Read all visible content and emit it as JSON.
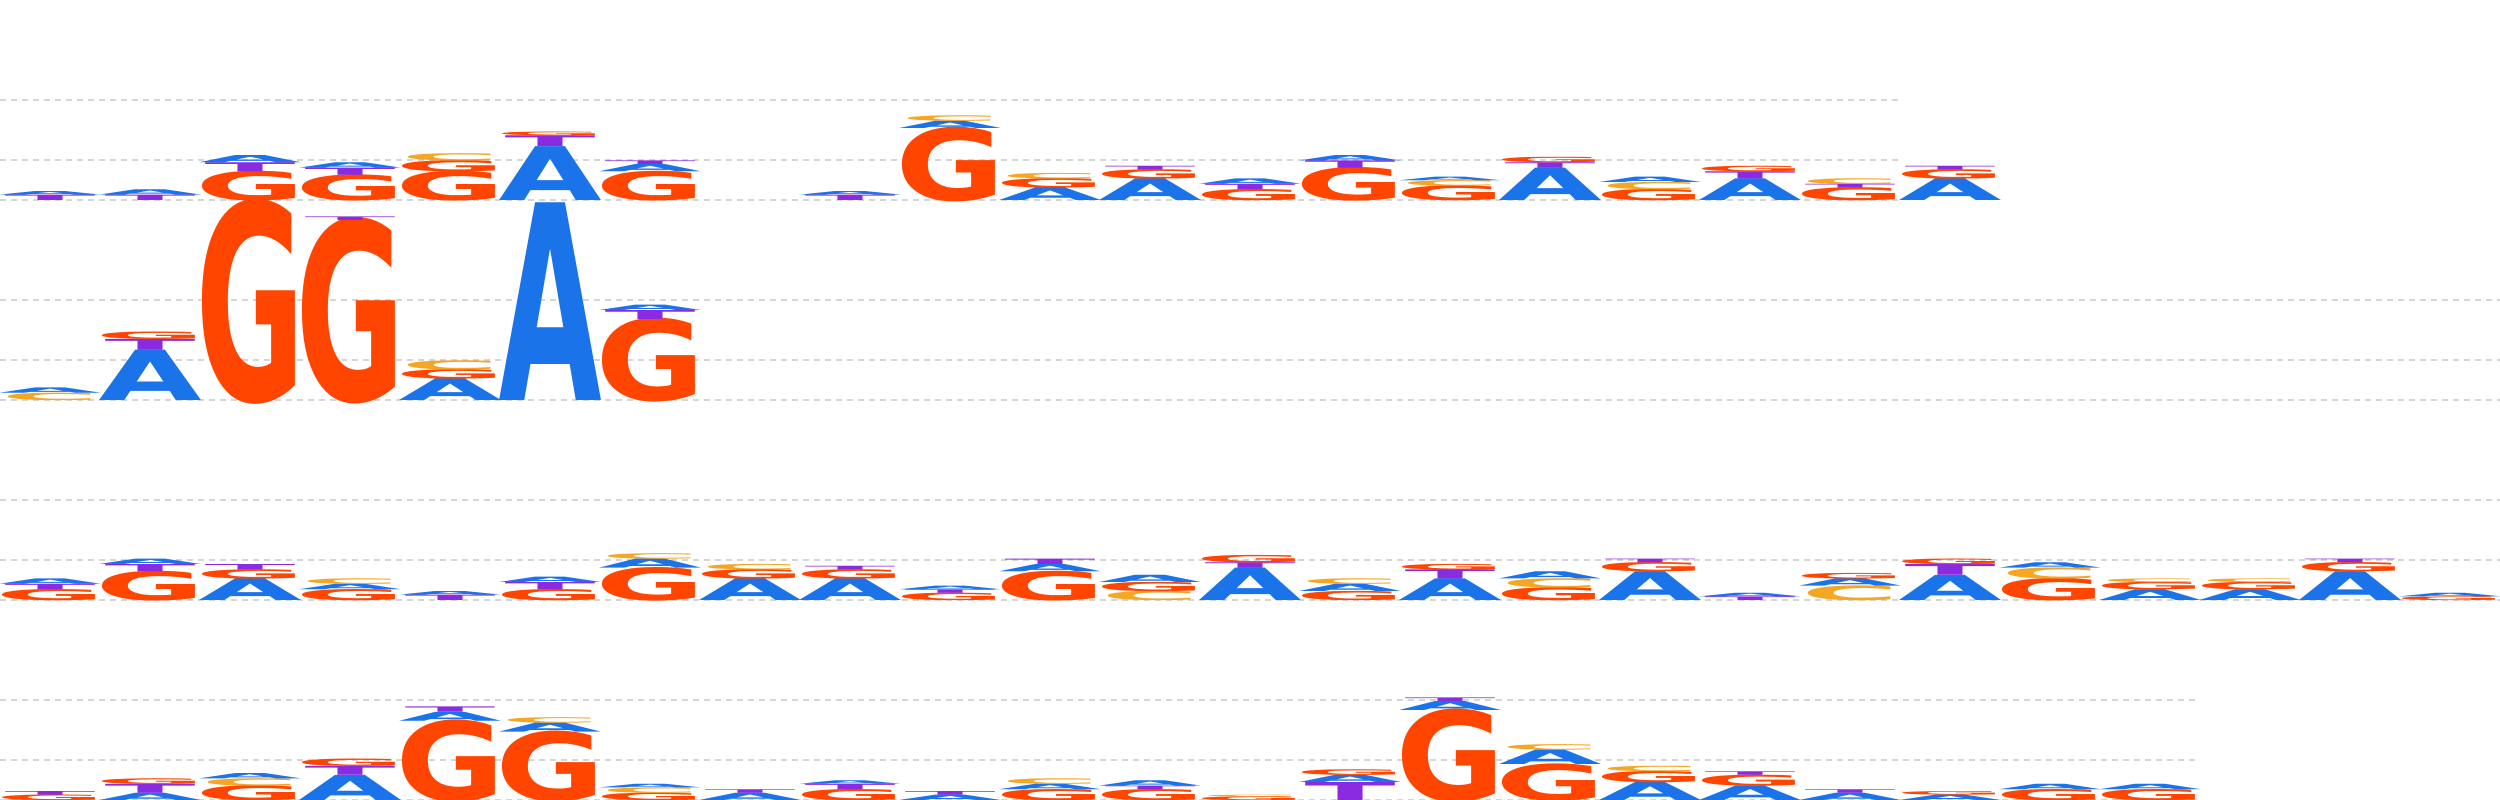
{
  "colors": {
    "A": "#1a73e8",
    "C": "#f5a623",
    "G": "#ff4500",
    "T": "#8a2be2",
    "gridline": "#c8c8c8"
  },
  "logos": [
    {
      "columns": [
        [
          [
            "T",
            0.03
          ],
          [
            "A",
            0.02
          ]
        ],
        [
          [
            "T",
            0.03
          ],
          [
            "A",
            0.03
          ]
        ],
        [
          [
            "G",
            0.16
          ],
          [
            "T",
            0.05
          ],
          [
            "A",
            0.04
          ]
        ],
        [
          [
            "G",
            0.14
          ],
          [
            "T",
            0.04
          ],
          [
            "A",
            0.03
          ]
        ],
        [
          [
            "G",
            0.16
          ],
          [
            "G",
            0.06
          ],
          [
            "C",
            0.04
          ]
        ],
        [
          [
            "A",
            0.3
          ],
          [
            "T",
            0.06
          ],
          [
            "G",
            0.02
          ]
        ],
        [
          [
            "G",
            0.16
          ],
          [
            "A",
            0.04
          ],
          [
            "T",
            0.02
          ]
        ],
        [],
        [
          [
            "T",
            0.03
          ],
          [
            "A",
            0.02
          ]
        ],
        [
          [
            "G",
            0.4
          ],
          [
            "A",
            0.04
          ],
          [
            "C",
            0.03
          ]
        ],
        [
          [
            "A",
            0.07
          ],
          [
            "G",
            0.05
          ],
          [
            "C",
            0.03
          ]
        ],
        [
          [
            "A",
            0.12
          ],
          [
            "G",
            0.05
          ],
          [
            "T",
            0.02
          ]
        ],
        [
          [
            "G",
            0.06
          ],
          [
            "T",
            0.03
          ],
          [
            "A",
            0.03
          ]
        ],
        [
          [
            "G",
            0.18
          ],
          [
            "T",
            0.04
          ],
          [
            "A",
            0.03
          ]
        ],
        [
          [
            "G",
            0.08
          ],
          [
            "C",
            0.03
          ],
          [
            "A",
            0.02
          ]
        ],
        [
          [
            "A",
            0.18
          ],
          [
            "T",
            0.03
          ],
          [
            "G",
            0.03
          ]
        ],
        [
          [
            "G",
            0.06
          ],
          [
            "C",
            0.04
          ],
          [
            "A",
            0.03
          ]
        ],
        [
          [
            "A",
            0.12
          ],
          [
            "T",
            0.04
          ],
          [
            "G",
            0.03
          ]
        ],
        [
          [
            "G",
            0.07
          ],
          [
            "T",
            0.02
          ],
          [
            "C",
            0.03
          ]
        ],
        [
          [
            "A",
            0.12
          ],
          [
            "G",
            0.05
          ],
          [
            "T",
            0.02
          ]
        ]
      ]
    },
    {
      "columns": [
        [
          [
            "C",
            0.04
          ],
          [
            "A",
            0.03
          ]
        ],
        [
          [
            "A",
            0.28
          ],
          [
            "T",
            0.06
          ],
          [
            "G",
            0.04
          ]
        ],
        [
          [
            "G",
            1.1
          ]
        ],
        [
          [
            "G",
            1.0
          ],
          [
            "T",
            0.02
          ]
        ],
        [
          [
            "A",
            0.12
          ],
          [
            "G",
            0.05
          ],
          [
            "C",
            0.05
          ]
        ],
        [
          [
            "A",
            1.1
          ]
        ],
        [
          [
            "G",
            0.45
          ],
          [
            "T",
            0.05
          ],
          [
            "A",
            0.03
          ]
        ]
      ]
    },
    {
      "columns": [
        [
          [
            "G",
            0.06
          ],
          [
            "T",
            0.03
          ],
          [
            "A",
            0.03
          ]
        ],
        [
          [
            "G",
            0.16
          ],
          [
            "T",
            0.04
          ],
          [
            "A",
            0.03
          ]
        ],
        [
          [
            "A",
            0.12
          ],
          [
            "G",
            0.05
          ],
          [
            "T",
            0.03
          ]
        ],
        [
          [
            "G",
            0.06
          ],
          [
            "A",
            0.03
          ],
          [
            "C",
            0.03
          ]
        ],
        [
          [
            "T",
            0.03
          ],
          [
            "A",
            0.02
          ]
        ],
        [
          [
            "G",
            0.06
          ],
          [
            "T",
            0.04
          ],
          [
            "A",
            0.03
          ]
        ],
        [
          [
            "G",
            0.18
          ],
          [
            "A",
            0.05
          ],
          [
            "C",
            0.03
          ]
        ],
        [
          [
            "A",
            0.12
          ],
          [
            "G",
            0.05
          ],
          [
            "C",
            0.03
          ]
        ],
        [
          [
            "A",
            0.12
          ],
          [
            "G",
            0.05
          ],
          [
            "T",
            0.02
          ]
        ],
        [
          [
            "G",
            0.04
          ],
          [
            "T",
            0.02
          ],
          [
            "A",
            0.02
          ]
        ],
        [
          [
            "G",
            0.16
          ],
          [
            "A",
            0.04
          ],
          [
            "T",
            0.03
          ]
        ],
        [
          [
            "C",
            0.05
          ],
          [
            "G",
            0.05
          ],
          [
            "A",
            0.04
          ]
        ],
        [
          [
            "A",
            0.18
          ],
          [
            "T",
            0.03
          ],
          [
            "G",
            0.04
          ]
        ],
        [
          [
            "G",
            0.05
          ],
          [
            "A",
            0.04
          ],
          [
            "C",
            0.03
          ]
        ],
        [
          [
            "A",
            0.12
          ],
          [
            "T",
            0.05
          ],
          [
            "G",
            0.03
          ]
        ],
        [
          [
            "G",
            0.07
          ],
          [
            "C",
            0.05
          ],
          [
            "A",
            0.04
          ]
        ],
        [
          [
            "A",
            0.16
          ],
          [
            "G",
            0.05
          ],
          [
            "T",
            0.02
          ]
        ],
        [
          [
            "T",
            0.02
          ],
          [
            "A",
            0.02
          ]
        ],
        [
          [
            "C",
            0.08
          ],
          [
            "A",
            0.04
          ],
          [
            "G",
            0.03
          ]
        ],
        [
          [
            "A",
            0.14
          ],
          [
            "T",
            0.06
          ],
          [
            "G",
            0.03
          ]
        ],
        [
          [
            "G",
            0.12
          ],
          [
            "C",
            0.06
          ],
          [
            "A",
            0.03
          ]
        ],
        [
          [
            "A",
            0.06
          ],
          [
            "G",
            0.04
          ],
          [
            "C",
            0.02
          ]
        ],
        [
          [
            "A",
            0.06
          ],
          [
            "G",
            0.04
          ],
          [
            "C",
            0.02
          ]
        ],
        [
          [
            "A",
            0.16
          ],
          [
            "G",
            0.05
          ],
          [
            "T",
            0.02
          ]
        ],
        [
          [
            "G",
            0.02
          ],
          [
            "A",
            0.02
          ]
        ]
      ]
    },
    {
      "columns": [
        [
          [
            "G",
            0.03
          ],
          [
            "T",
            0.02
          ]
        ],
        [
          [
            "A",
            0.04
          ],
          [
            "T",
            0.05
          ],
          [
            "G",
            0.03
          ]
        ],
        [
          [
            "G",
            0.08
          ],
          [
            "C",
            0.04
          ],
          [
            "A",
            0.03
          ]
        ],
        [
          [
            "A",
            0.14
          ],
          [
            "T",
            0.05
          ],
          [
            "G",
            0.04
          ]
        ],
        [
          [
            "G",
            0.44
          ],
          [
            "A",
            0.05
          ],
          [
            "T",
            0.03
          ]
        ],
        [
          [
            "G",
            0.38
          ],
          [
            "A",
            0.05
          ],
          [
            "C",
            0.03
          ]
        ],
        [
          [
            "G",
            0.04
          ],
          [
            "C",
            0.03
          ],
          [
            "A",
            0.02
          ]
        ],
        [
          [
            "A",
            0.04
          ],
          [
            "T",
            0.02
          ]
        ],
        [
          [
            "G",
            0.06
          ],
          [
            "T",
            0.03
          ],
          [
            "A",
            0.02
          ]
        ],
        [
          [
            "A",
            0.03
          ],
          [
            "T",
            0.02
          ]
        ],
        [
          [
            "G",
            0.06
          ],
          [
            "A",
            0.03
          ],
          [
            "C",
            0.03
          ]
        ],
        [
          [
            "G",
            0.06
          ],
          [
            "T",
            0.02
          ],
          [
            "A",
            0.03
          ]
        ],
        [
          [
            "G",
            0.02
          ],
          [
            "C",
            0.01
          ]
        ],
        [
          [
            "T",
            0.1
          ],
          [
            "A",
            0.04
          ],
          [
            "G",
            0.03
          ]
        ],
        [
          [
            "G",
            0.5
          ],
          [
            "A",
            0.05
          ],
          [
            "T",
            0.02
          ]
        ],
        [
          [
            "G",
            0.2
          ],
          [
            "A",
            0.08
          ],
          [
            "C",
            0.03
          ]
        ],
        [
          [
            "A",
            0.1
          ],
          [
            "G",
            0.06
          ],
          [
            "C",
            0.03
          ]
        ],
        [
          [
            "A",
            0.08
          ],
          [
            "G",
            0.06
          ],
          [
            "T",
            0.02
          ]
        ],
        [
          [
            "A",
            0.04
          ],
          [
            "T",
            0.02
          ]
        ],
        [
          [
            "A",
            0.03
          ],
          [
            "G",
            0.02
          ]
        ],
        [
          [
            "G",
            0.06
          ],
          [
            "A",
            0.03
          ]
        ],
        [
          [
            "G",
            0.06
          ],
          [
            "A",
            0.03
          ]
        ]
      ]
    }
  ]
}
